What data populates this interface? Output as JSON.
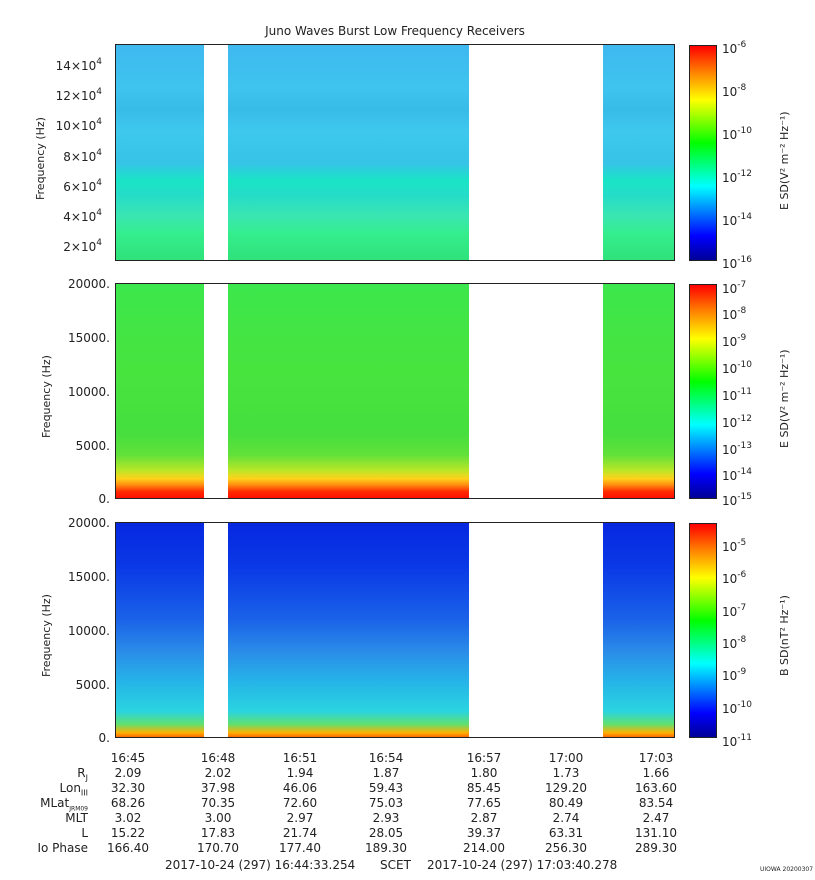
{
  "title": "Juno Waves Burst Low Frequency Receivers",
  "panels": [
    {
      "ylabel": "Frequency (Hz)",
      "yticks": [
        "14×10",
        "12×10",
        "10×10",
        "8×10",
        "6×10",
        "4×10",
        "2×10"
      ],
      "ytick_exp": "4",
      "cbar_label": "E SD(V² m⁻² Hz⁻¹)",
      "cbar_ticks": [
        "10",
        "10",
        "10",
        "10",
        "10",
        "10"
      ],
      "cbar_exps": [
        "-6",
        "-8",
        "-10",
        "-12",
        "-14",
        "-16"
      ]
    },
    {
      "ylabel": "Frequency (Hz)",
      "yticks": [
        "20000.",
        "15000.",
        "10000.",
        "5000.",
        "0."
      ],
      "cbar_label": "E SD(V² m⁻² Hz⁻¹)",
      "cbar_ticks": [
        "10",
        "10",
        "10",
        "10",
        "10",
        "10",
        "10",
        "10",
        "10"
      ],
      "cbar_exps": [
        "-7",
        "-8",
        "-9",
        "-10",
        "-11",
        "-12",
        "-13",
        "-14",
        "-15"
      ]
    },
    {
      "ylabel": "Frequency (Hz)",
      "yticks": [
        "20000.",
        "15000.",
        "10000.",
        "5000.",
        "0."
      ],
      "cbar_label": "B SD(nT² Hz⁻¹)",
      "cbar_ticks": [
        "10",
        "10",
        "10",
        "10",
        "10",
        "10",
        "10"
      ],
      "cbar_exps": [
        "-5",
        "-6",
        "-7",
        "-8",
        "-9",
        "-10",
        "-11"
      ]
    }
  ],
  "xticks": [
    "16:45",
    "16:48",
    "16:51",
    "16:54",
    "16:57",
    "17:00",
    "17:03"
  ],
  "ephemeris": {
    "labels": [
      "R",
      "Lon",
      "MLat",
      "MLT",
      "L",
      "Io Phase"
    ],
    "label_subs": [
      "J",
      "III",
      "JRM09",
      "",
      "",
      ""
    ],
    "rows": [
      [
        "2.09",
        "2.02",
        "1.94",
        "1.87",
        "1.80",
        "1.73",
        "1.66"
      ],
      [
        "32.30",
        "37.98",
        "46.06",
        "59.43",
        "85.45",
        "129.20",
        "163.60"
      ],
      [
        "68.26",
        "70.35",
        "72.60",
        "75.03",
        "77.65",
        "80.49",
        "83.54"
      ],
      [
        "3.02",
        "3.00",
        "2.97",
        "2.93",
        "2.87",
        "2.74",
        "2.47"
      ],
      [
        "15.22",
        "17.83",
        "21.74",
        "28.05",
        "39.37",
        "63.31",
        "131.10"
      ],
      [
        "166.40",
        "170.70",
        "177.40",
        "189.30",
        "214.00",
        "256.30",
        "289.30"
      ]
    ]
  },
  "footer": {
    "start": "2017-10-24 (297) 16:44:33.254",
    "scet": "SCET",
    "end": "2017-10-24 (297) 17:03:40.278"
  },
  "stamp": "UIOWA 20200307",
  "chart_data": {
    "type": "heatmap",
    "title": "Juno Waves Burst Low Frequency Receivers",
    "x_time_range": [
      "16:44:33.254",
      "17:03:40.278"
    ],
    "x_ticks": [
      "16:45",
      "16:48",
      "16:51",
      "16:54",
      "16:57",
      "17:00",
      "17:03"
    ],
    "data_gaps": [
      [
        "16:47:50",
        "16:48:35"
      ],
      [
        "16:56:40",
        "17:01:00"
      ]
    ],
    "panels": [
      {
        "ylabel": "Frequency (Hz)",
        "ylim": [
          10000,
          150000
        ],
        "colorbar": "E SD(V2 m-2 Hz-1)",
        "clim": [
          "1e-16",
          "1e-6"
        ],
        "colorscale": "log"
      },
      {
        "ylabel": "Frequency (Hz)",
        "ylim": [
          0,
          20000
        ],
        "colorbar": "E SD(V2 m-2 Hz-1)",
        "clim": [
          "1e-15",
          "1e-7"
        ],
        "colorscale": "log"
      },
      {
        "ylabel": "Frequency (Hz)",
        "ylim": [
          0,
          20000
        ],
        "colorbar": "B SD(nT2 Hz-1)",
        "clim": [
          "1e-11",
          "1e-4.5"
        ],
        "colorscale": "log"
      }
    ]
  }
}
